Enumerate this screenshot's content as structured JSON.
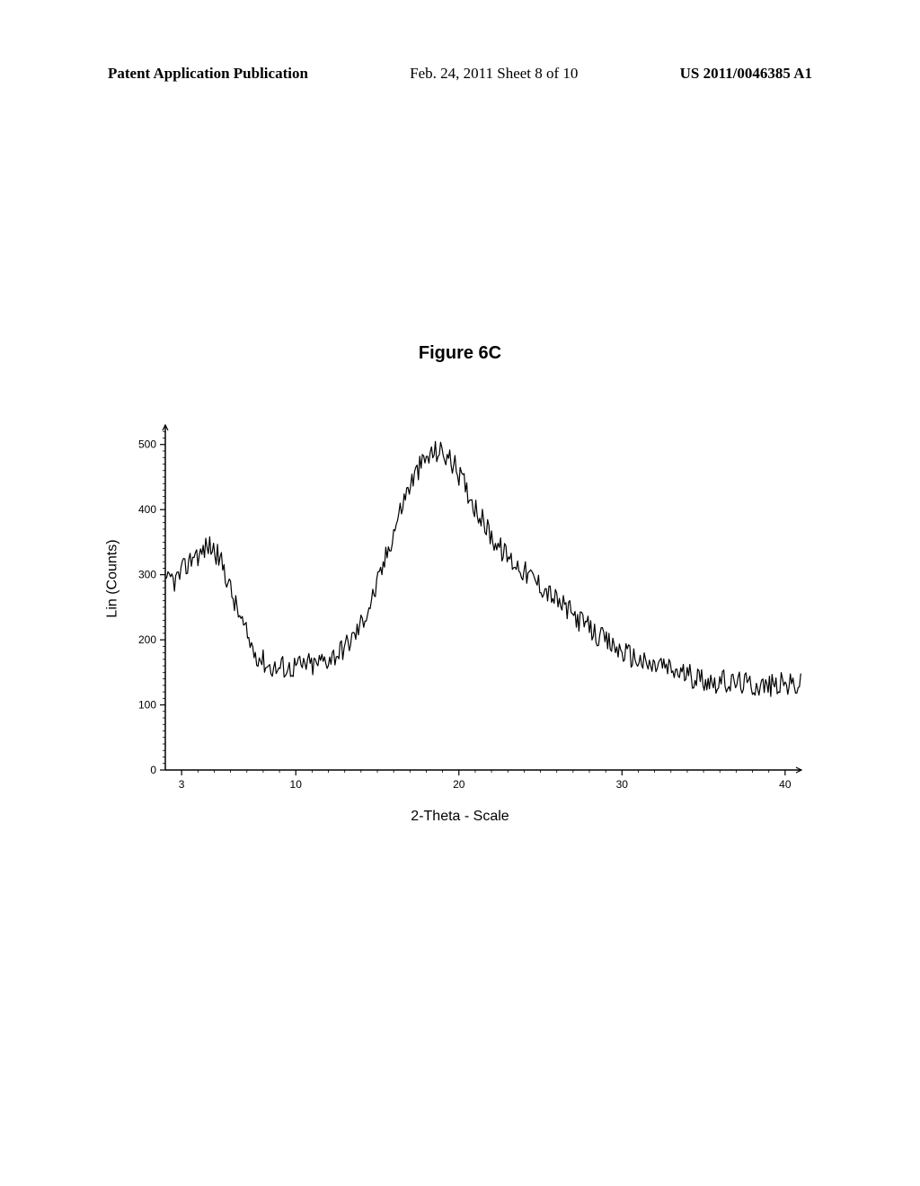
{
  "header": {
    "left": "Patent Application Publication",
    "center": "Feb. 24, 2011  Sheet 8 of 10",
    "right": "US 2011/0046385 A1"
  },
  "figure": {
    "title": "Figure 6C",
    "type": "line",
    "xlabel": "2-Theta - Scale",
    "ylabel": "Lin (Counts)",
    "xlim": [
      2,
      41
    ],
    "ylim": [
      0,
      530
    ],
    "xtick_positions": [
      3,
      10,
      20,
      30,
      40
    ],
    "xtick_labels": [
      "3",
      "10",
      "20",
      "30",
      "40"
    ],
    "ytick_positions": [
      0,
      100,
      200,
      300,
      400,
      500
    ],
    "ytick_labels": [
      "0",
      "100",
      "200",
      "300",
      "400",
      "500"
    ],
    "background_color": "#ffffff",
    "line_color": "#000000",
    "line_width": 1.2,
    "axis_color": "#000000",
    "title_fontsize": 20,
    "label_fontsize": 16,
    "tick_fontsize": 12,
    "data": [
      [
        2.0,
        280
      ],
      [
        2.3,
        295
      ],
      [
        2.6,
        290
      ],
      [
        2.9,
        300
      ],
      [
        3.2,
        310
      ],
      [
        3.5,
        320
      ],
      [
        3.8,
        335
      ],
      [
        4.1,
        328
      ],
      [
        4.4,
        340
      ],
      [
        4.7,
        345
      ],
      [
        5.0,
        338
      ],
      [
        5.3,
        325
      ],
      [
        5.6,
        310
      ],
      [
        5.9,
        285
      ],
      [
        6.2,
        260
      ],
      [
        6.5,
        240
      ],
      [
        6.8,
        220
      ],
      [
        7.1,
        200
      ],
      [
        7.4,
        185
      ],
      [
        7.7,
        175
      ],
      [
        8.0,
        168
      ],
      [
        8.3,
        160
      ],
      [
        8.6,
        158
      ],
      [
        8.9,
        155
      ],
      [
        9.2,
        160
      ],
      [
        9.5,
        155
      ],
      [
        9.8,
        158
      ],
      [
        10.1,
        162
      ],
      [
        10.4,
        158
      ],
      [
        10.7,
        165
      ],
      [
        11.0,
        160
      ],
      [
        11.3,
        163
      ],
      [
        11.6,
        168
      ],
      [
        11.9,
        170
      ],
      [
        12.2,
        175
      ],
      [
        12.5,
        178
      ],
      [
        12.8,
        185
      ],
      [
        13.1,
        192
      ],
      [
        13.4,
        200
      ],
      [
        13.7,
        210
      ],
      [
        14.0,
        225
      ],
      [
        14.3,
        240
      ],
      [
        14.6,
        258
      ],
      [
        14.9,
        278
      ],
      [
        15.2,
        300
      ],
      [
        15.5,
        325
      ],
      [
        15.8,
        350
      ],
      [
        16.1,
        375
      ],
      [
        16.4,
        398
      ],
      [
        16.7,
        420
      ],
      [
        17.0,
        438
      ],
      [
        17.3,
        452
      ],
      [
        17.6,
        465
      ],
      [
        17.9,
        475
      ],
      [
        18.2,
        482
      ],
      [
        18.5,
        488
      ],
      [
        18.8,
        490
      ],
      [
        19.1,
        485
      ],
      [
        19.4,
        478
      ],
      [
        19.7,
        468
      ],
      [
        20.0,
        455
      ],
      [
        20.3,
        440
      ],
      [
        20.6,
        425
      ],
      [
        20.9,
        410
      ],
      [
        21.2,
        395
      ],
      [
        21.5,
        380
      ],
      [
        21.8,
        368
      ],
      [
        22.1,
        355
      ],
      [
        22.4,
        345
      ],
      [
        22.7,
        335
      ],
      [
        23.0,
        328
      ],
      [
        23.3,
        320
      ],
      [
        23.6,
        315
      ],
      [
        23.9,
        308
      ],
      [
        24.2,
        300
      ],
      [
        24.5,
        295
      ],
      [
        24.8,
        288
      ],
      [
        25.1,
        282
      ],
      [
        25.4,
        275
      ],
      [
        25.7,
        268
      ],
      [
        26.0,
        260
      ],
      [
        26.3,
        253
      ],
      [
        26.6,
        248
      ],
      [
        26.9,
        240
      ],
      [
        27.2,
        235
      ],
      [
        27.5,
        228
      ],
      [
        27.8,
        222
      ],
      [
        28.1,
        215
      ],
      [
        28.4,
        208
      ],
      [
        28.7,
        202
      ],
      [
        29.0,
        198
      ],
      [
        29.3,
        192
      ],
      [
        29.6,
        188
      ],
      [
        29.9,
        183
      ],
      [
        30.2,
        180
      ],
      [
        30.5,
        176
      ],
      [
        30.8,
        172
      ],
      [
        31.1,
        168
      ],
      [
        31.4,
        163
      ],
      [
        31.7,
        160
      ],
      [
        32.0,
        158
      ],
      [
        32.3,
        165
      ],
      [
        32.6,
        158
      ],
      [
        32.9,
        155
      ],
      [
        33.2,
        152
      ],
      [
        33.5,
        150
      ],
      [
        33.8,
        148
      ],
      [
        34.1,
        145
      ],
      [
        34.4,
        143
      ],
      [
        34.7,
        142
      ],
      [
        35.0,
        140
      ],
      [
        35.3,
        138
      ],
      [
        35.6,
        136
      ],
      [
        35.9,
        135
      ],
      [
        36.2,
        136
      ],
      [
        36.5,
        134
      ],
      [
        36.8,
        133
      ],
      [
        37.1,
        135
      ],
      [
        37.4,
        134
      ],
      [
        37.7,
        132
      ],
      [
        38.0,
        130
      ],
      [
        38.3,
        131
      ],
      [
        38.6,
        130
      ],
      [
        38.9,
        128
      ],
      [
        39.2,
        130
      ],
      [
        39.5,
        131
      ],
      [
        39.8,
        132
      ],
      [
        40.1,
        130
      ],
      [
        40.4,
        131
      ],
      [
        40.7,
        130
      ],
      [
        41.0,
        132
      ]
    ],
    "noise_amplitude": 18
  }
}
